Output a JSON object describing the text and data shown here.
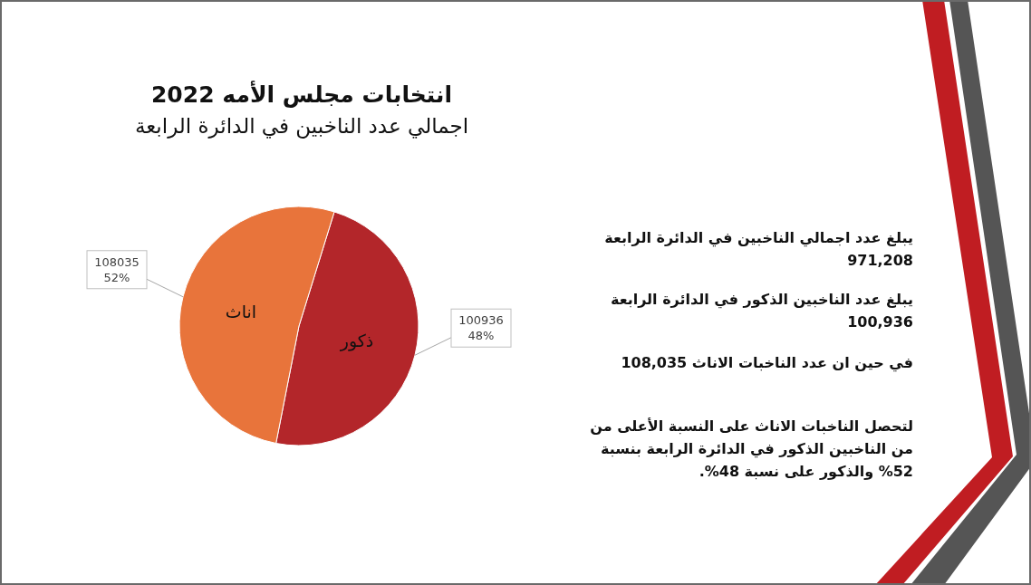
{
  "chart_data": {
    "type": "pie",
    "title": "انتخابات مجلس الأمه 2022",
    "subtitle": "اجمالي عدد الناخبين في الدائرة الرابعة",
    "categories": [
      "ذكور",
      "اناث"
    ],
    "values": [
      100936,
      108035
    ],
    "colors": [
      "#b3262a",
      "#e8743b"
    ],
    "value_labels": [
      "100936\n48%",
      "108035\n52%"
    ],
    "annotations": [
      "يبلغ عدد اجمالي الناخبين في الدائرة الرابعة 971,208",
      "يبلغ عدد الناخبين الذكور في الدائرة الرابعة 100,936",
      "في حين ان عدد الناخبات الاناث 108,035",
      "لتحصل الناخبات الاناث على النسبة الأعلى من من الناخبين الذكور في الدائرة الرابعة بنسبة 52% والذكور على نسبة 48%."
    ]
  }
}
